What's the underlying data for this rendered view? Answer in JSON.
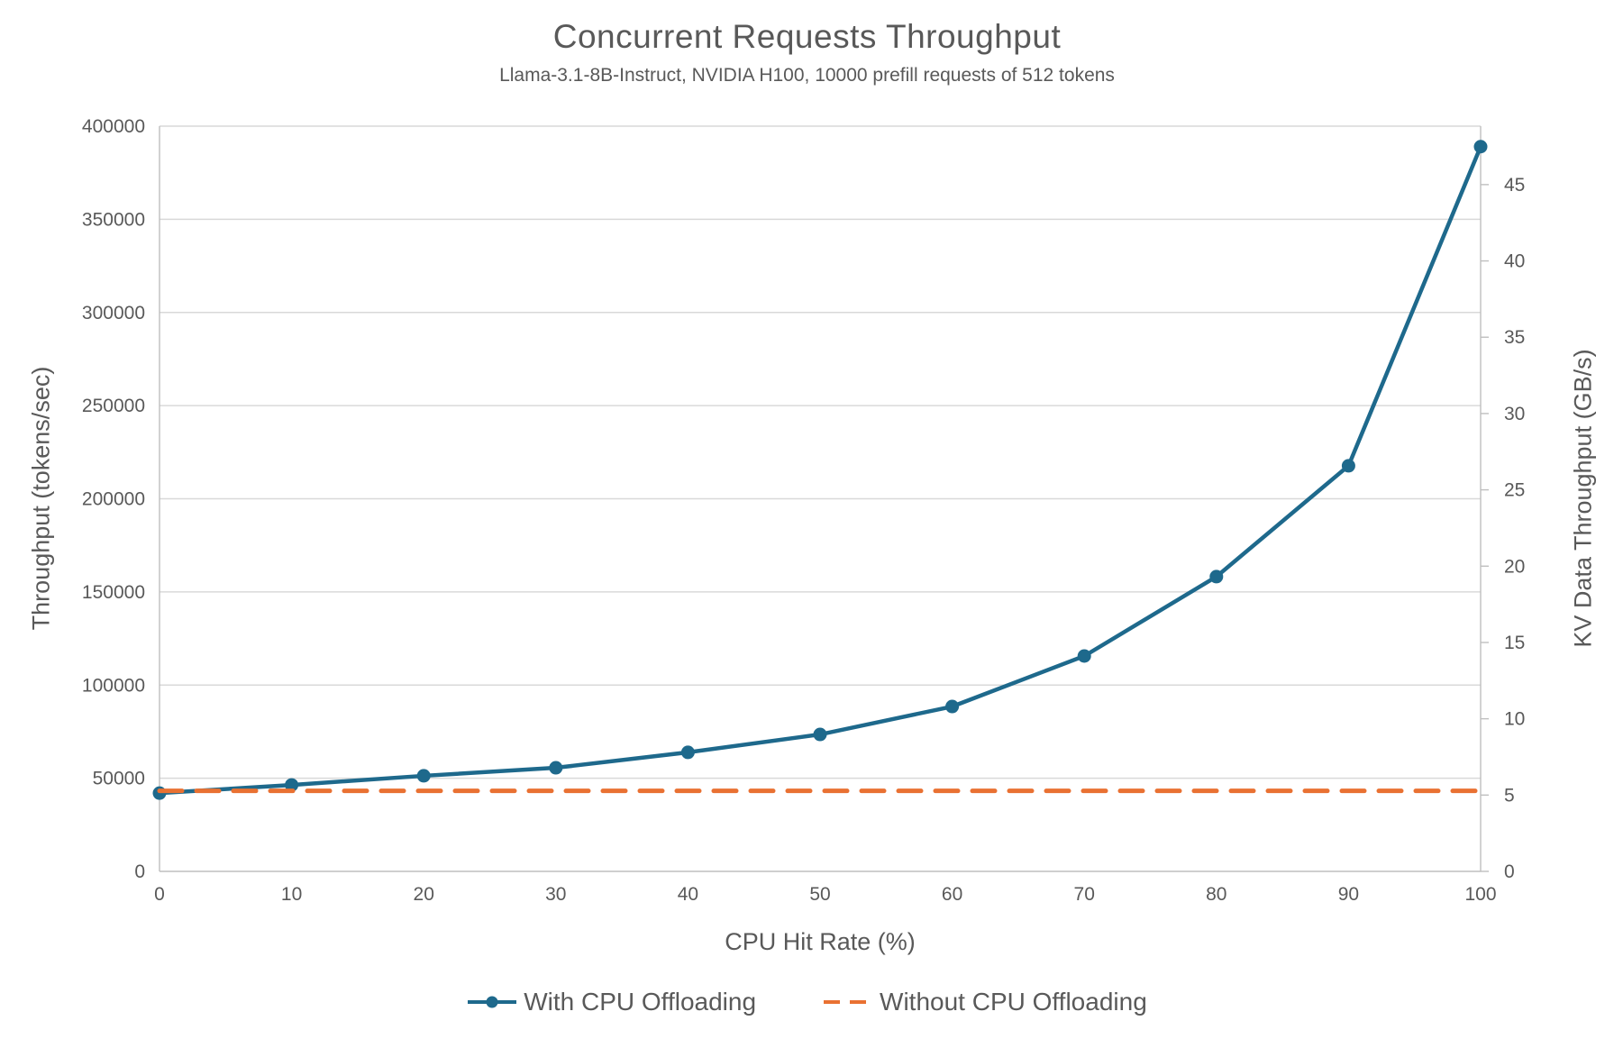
{
  "chart_data": {
    "type": "line",
    "title": "Concurrent Requests Throughput",
    "subtitle": "Llama-3.1-8B-Instruct, NVIDIA H100, 10000 prefill requests of 512 tokens",
    "xlabel": "CPU Hit Rate (%)",
    "ylabel_left": "Throughput (tokens/sec)",
    "ylabel_right": "KV Data Throughput (GB/s)",
    "xlim": [
      0,
      100
    ],
    "ylim_left": [
      0,
      400000
    ],
    "ylim_right": [
      0,
      48.83
    ],
    "x_ticks": [
      0,
      10,
      20,
      30,
      40,
      50,
      60,
      70,
      80,
      90,
      100
    ],
    "left_ticks": [
      0,
      50000,
      100000,
      150000,
      200000,
      250000,
      300000,
      350000,
      400000
    ],
    "right_ticks": [
      0,
      5,
      10,
      15,
      20,
      25,
      30,
      35,
      40,
      45
    ],
    "grid": "horizontal",
    "legend_position": "bottom",
    "series": [
      {
        "name": "With CPU Offloading",
        "color": "#1E698C",
        "style": "solid",
        "marker": "circle",
        "x": [
          0,
          10,
          20,
          30,
          40,
          50,
          60,
          70,
          80,
          90,
          100
        ],
        "values": [
          42000,
          46400,
          51300,
          55600,
          63900,
          73500,
          88500,
          115600,
          158200,
          217700,
          389000
        ]
      },
      {
        "name": "Without CPU Offloading",
        "color": "#E97132",
        "style": "dashed",
        "marker": "none",
        "x": [
          0,
          100
        ],
        "values": [
          43200,
          43200
        ]
      }
    ]
  },
  "colors": {
    "text": "#595959",
    "gridline": "#D9D9D9",
    "axis_line": "#BFBFBF",
    "series_blue": "#1E698C",
    "series_orange": "#E97132",
    "background": "#FFFFFF"
  }
}
